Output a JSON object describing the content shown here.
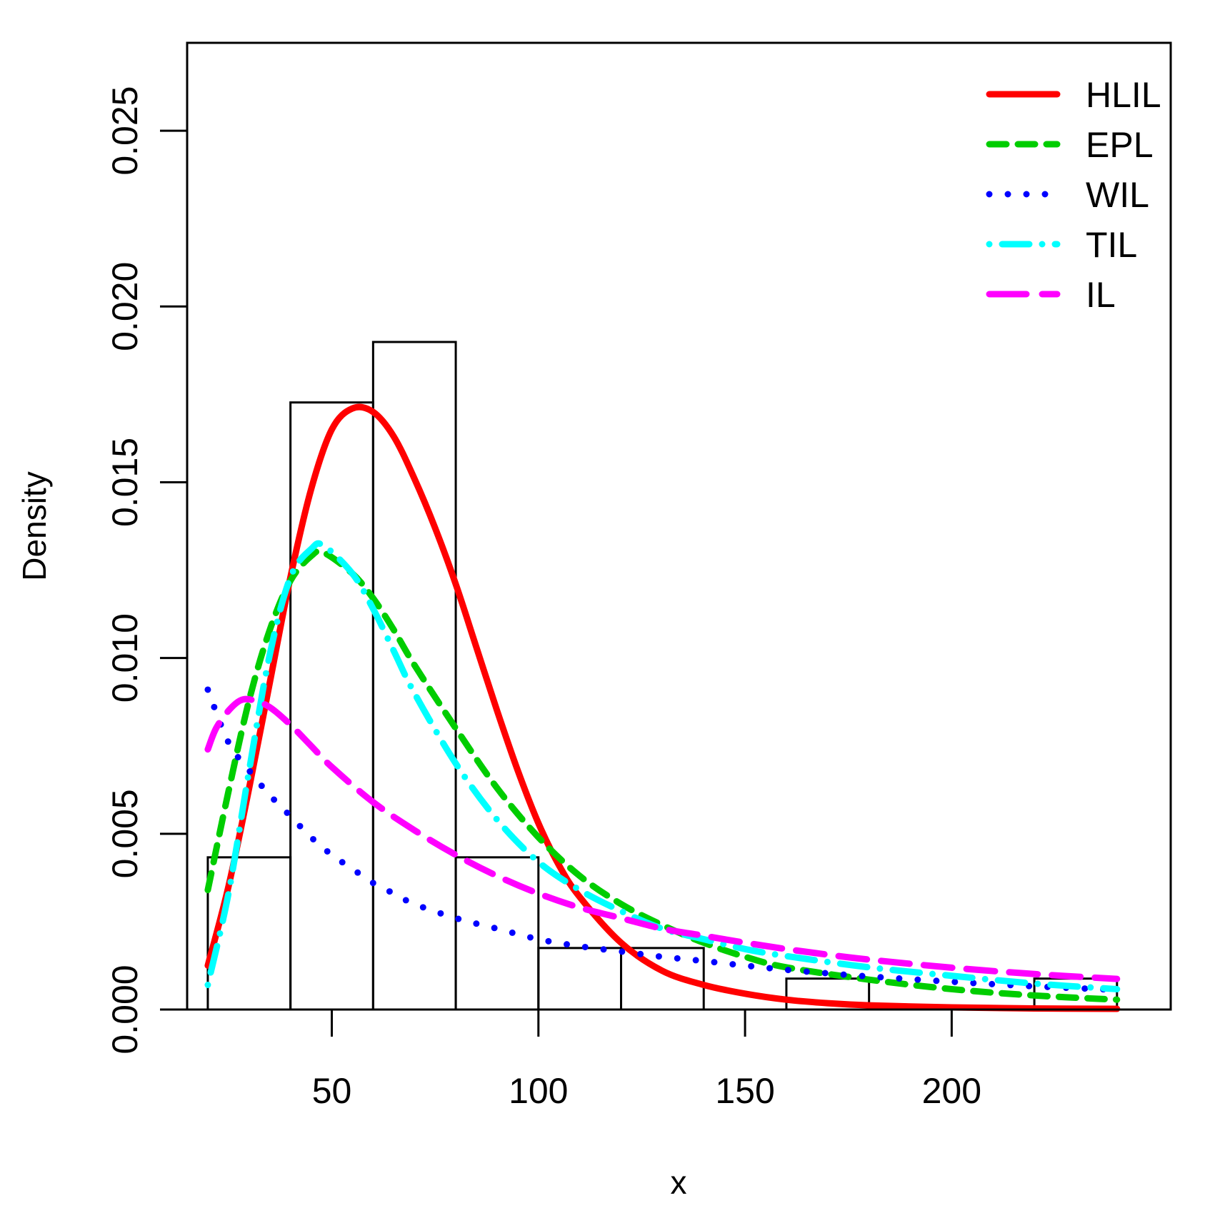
{
  "chart_data": {
    "type": "histogram",
    "title": "",
    "xlabel": "x",
    "ylabel": "Density",
    "xlim": [
      15,
      253
    ],
    "ylim": [
      0,
      0.0275
    ],
    "xticks": [
      50,
      100,
      150,
      200
    ],
    "xtick_labels": [
      "50",
      "100",
      "150",
      "200"
    ],
    "yticks": [
      0,
      0.005,
      0.01,
      0.015,
      0.02,
      0.025
    ],
    "ytick_labels": [
      "0.000",
      "0.005",
      "0.010",
      "0.015",
      "0.020",
      "0.025"
    ],
    "bins": [
      {
        "start": 20,
        "end": 40,
        "density": 0.00433
      },
      {
        "start": 40,
        "end": 60,
        "density": 0.01727
      },
      {
        "start": 60,
        "end": 80,
        "density": 0.01899
      },
      {
        "start": 80,
        "end": 100,
        "density": 0.00433
      },
      {
        "start": 100,
        "end": 120,
        "density": 0.00175
      },
      {
        "start": 120,
        "end": 140,
        "density": 0.00175
      },
      {
        "start": 140,
        "end": 160,
        "density": 0
      },
      {
        "start": 160,
        "end": 180,
        "density": 0.00088
      },
      {
        "start": 180,
        "end": 200,
        "density": 0
      },
      {
        "start": 200,
        "end": 220,
        "density": 0
      },
      {
        "start": 220,
        "end": 240,
        "density": 0.00088
      }
    ],
    "series": [
      {
        "name": "HLIL",
        "color": "#ff0000",
        "style": "solid",
        "x": [
          20,
          25,
          30,
          35,
          40,
          45,
          50,
          55,
          60,
          65,
          70,
          75,
          80,
          85,
          90,
          95,
          100,
          105,
          110,
          120,
          130,
          140,
          150,
          160,
          170,
          180,
          200,
          220,
          240
        ],
        "y": [
          0.00125,
          0.0035,
          0.0063,
          0.0093,
          0.0123,
          0.0148,
          0.0165,
          0.0171,
          0.017,
          0.0163,
          0.0151,
          0.0137,
          0.0121,
          0.0103,
          0.0085,
          0.0068,
          0.0053,
          0.0041,
          0.0032,
          0.0019,
          0.0011,
          0.0007,
          0.00045,
          0.00028,
          0.00018,
          0.00012,
          6e-05,
          3e-05,
          2e-05
        ]
      },
      {
        "name": "EPL",
        "color": "#00cd00",
        "style": "dashed",
        "x": [
          20,
          25,
          30,
          35,
          40,
          45,
          48,
          55,
          60,
          65,
          70,
          80,
          90,
          100,
          110,
          120,
          130,
          140,
          150,
          160,
          180,
          200,
          220,
          240
        ],
        "y": [
          0.0034,
          0.0062,
          0.0088,
          0.0108,
          0.0122,
          0.0129,
          0.013,
          0.0124,
          0.0117,
          0.0108,
          0.0098,
          0.008,
          0.0063,
          0.0049,
          0.0038,
          0.003,
          0.0024,
          0.0019,
          0.0015,
          0.0012,
          0.00085,
          0.00058,
          0.0004,
          0.00028
        ]
      },
      {
        "name": "WIL",
        "color": "#0000ff",
        "style": "dotted",
        "x": [
          20,
          25,
          30,
          35,
          40,
          45,
          50,
          55,
          60,
          65,
          70,
          80,
          90,
          100,
          110,
          120,
          130,
          140,
          150,
          160,
          170,
          180,
          200,
          220,
          240
        ],
        "y": [
          0.0091,
          0.0076,
          0.0068,
          0.0061,
          0.0055,
          0.0049,
          0.0044,
          0.004,
          0.0036,
          0.0033,
          0.003,
          0.0026,
          0.0023,
          0.002,
          0.0018,
          0.00165,
          0.0015,
          0.00138,
          0.00125,
          0.00113,
          0.00103,
          0.00094,
          0.00079,
          0.00066,
          0.00056
        ]
      },
      {
        "name": "TIL",
        "color": "#00ffff",
        "style": "dotdash",
        "x": [
          20,
          25,
          30,
          35,
          40,
          45,
          48,
          55,
          60,
          65,
          70,
          80,
          90,
          100,
          110,
          120,
          130,
          140,
          150,
          160,
          180,
          200,
          220,
          240
        ],
        "y": [
          0.0007,
          0.0033,
          0.0068,
          0.0101,
          0.0123,
          0.0131,
          0.0132,
          0.0124,
          0.0114,
          0.0102,
          0.009,
          0.007,
          0.0054,
          0.0042,
          0.0034,
          0.0028,
          0.0023,
          0.002,
          0.00172,
          0.00152,
          0.0012,
          0.00096,
          0.00074,
          0.00058
        ]
      },
      {
        "name": "IL",
        "color": "#ff00ff",
        "style": "longdash",
        "x": [
          20,
          22,
          25,
          28,
          31,
          35,
          40,
          45,
          50,
          60,
          70,
          80,
          90,
          100,
          110,
          120,
          130,
          140,
          150,
          160,
          170,
          180,
          200,
          220,
          240
        ],
        "y": [
          0.0074,
          0.008,
          0.0085,
          0.0088,
          0.0088,
          0.0086,
          0.0081,
          0.0075,
          0.0069,
          0.0059,
          0.0051,
          0.0044,
          0.0038,
          0.0033,
          0.0029,
          0.0026,
          0.0023,
          0.0021,
          0.0019,
          0.00172,
          0.00156,
          0.00142,
          0.00119,
          0.00101,
          0.00087
        ]
      }
    ],
    "legend_position": "top-right"
  }
}
